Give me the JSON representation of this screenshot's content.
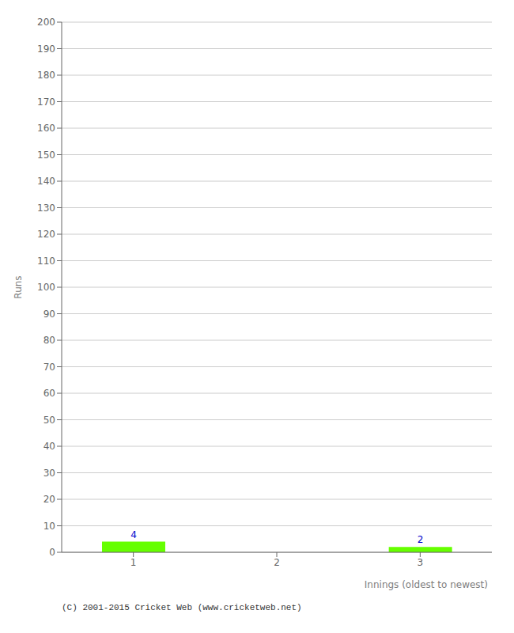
{
  "chart_data": {
    "type": "bar",
    "xlabel": "Innings (oldest to newest)",
    "ylabel": "Runs",
    "categories": [
      "1",
      "2",
      "3"
    ],
    "values": [
      4,
      0,
      2
    ],
    "color": "#66ff00",
    "ylim": [
      0,
      200
    ],
    "yticks": [
      0,
      10,
      20,
      30,
      40,
      50,
      60,
      70,
      80,
      90,
      100,
      110,
      120,
      130,
      140,
      150,
      160,
      170,
      180,
      190,
      200
    ],
    "grid": true,
    "data_labels": true,
    "annotations": [
      "(C) 2001-2015 Cricket Web (www.cricketweb.net)"
    ]
  }
}
